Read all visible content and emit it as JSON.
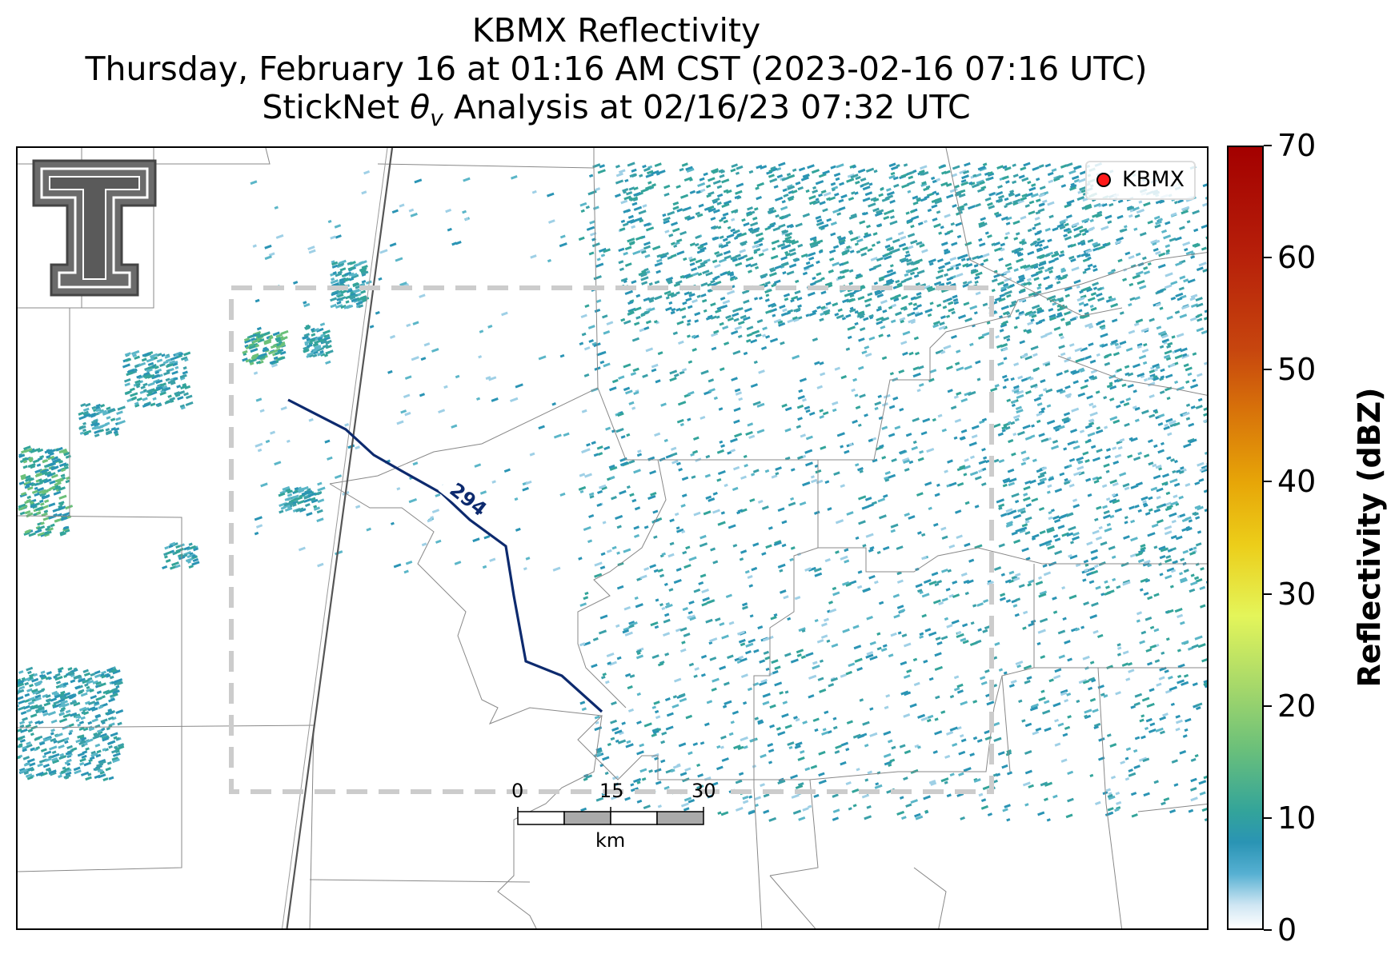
{
  "title": {
    "line1": "KBMX Reflectivity",
    "line2": "Thursday, February 16 at 01:16 AM CST (2023-02-16 07:16 UTC)",
    "line3_prefix": "StickNet ",
    "line3_symbol": "θ",
    "line3_subscript": "v",
    "line3_suffix": " Analysis at 02/16/23 07:32 UTC"
  },
  "legend": {
    "label": "KBMX",
    "marker_color": "#ff1a1a"
  },
  "contour": {
    "label": "294",
    "color": "#0d2a6e"
  },
  "scale_bar": {
    "ticks": [
      "0",
      "15",
      "30"
    ],
    "unit": "km"
  },
  "colorbar": {
    "title": "Reflectivity (dBZ)",
    "min": 0,
    "max": 70,
    "ticks": [
      "0",
      "10",
      "20",
      "30",
      "40",
      "50",
      "60",
      "70"
    ]
  },
  "logo": {
    "name": "Texas Tech Double T"
  },
  "colors": {
    "echo_light": "#9fd0e6",
    "echo_main": "#2a94b4",
    "echo_teal": "#33a49a",
    "analysis_box": "#cccccc"
  }
}
